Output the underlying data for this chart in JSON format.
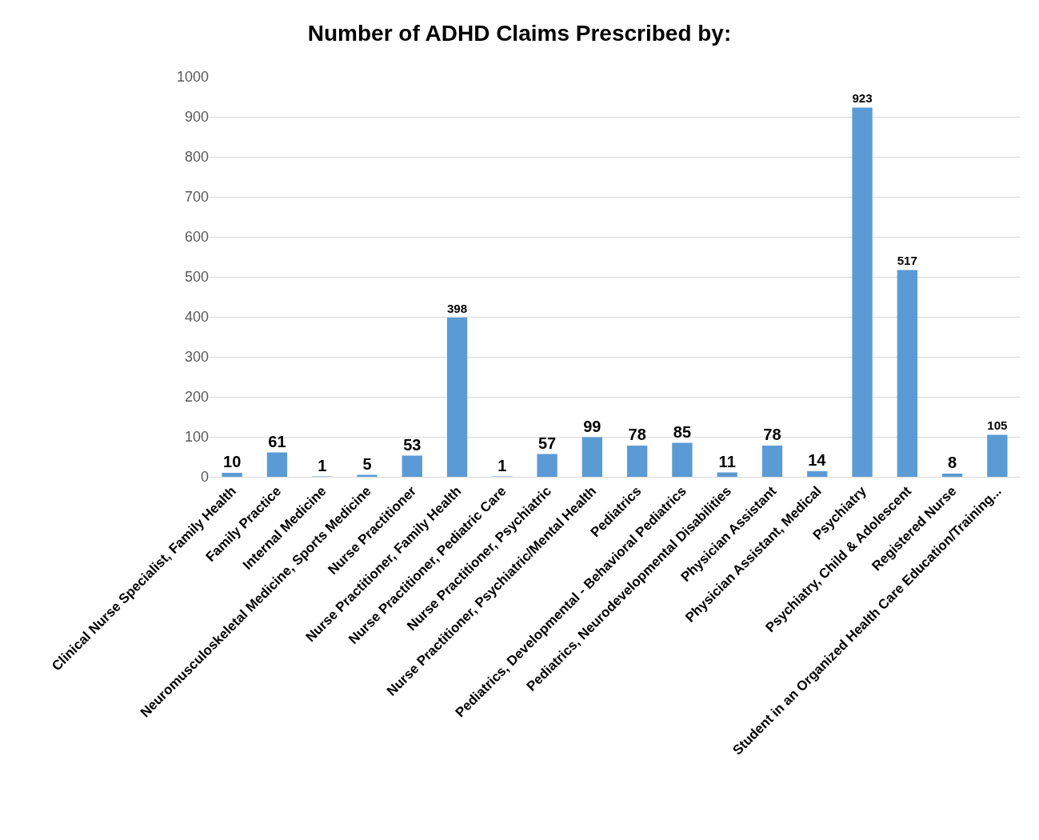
{
  "chart_data": {
    "type": "bar",
    "title": "Number of ADHD Claims Prescribed by:",
    "categories": [
      "Clinical Nurse Specialist, Family Health",
      "Family Practice",
      "Internal Medicine",
      "Neuromusculoskeletal Medicine, Sports Medicine",
      "Nurse Practitioner",
      "Nurse Practitioner, Family Health",
      "Nurse Practitioner, Pediatric Care",
      "Nurse Practitioner, Psychiatric",
      "Nurse Practitioner, Psychiatric/Mental Health",
      "Pediatrics",
      "Pediatrics, Developmental - Behavioral Pediatrics",
      "Pediatrics, Neurodevelopmental Disabilities",
      "Physician Assistant",
      "Physician Assistant, Medical",
      "Psychiatry",
      "Psychiatry, Child & Adolescent",
      "Registered Nurse",
      "Student in an Organized Health Care Education/Training..."
    ],
    "values": [
      10,
      61,
      1,
      5,
      53,
      398,
      1,
      57,
      99,
      78,
      85,
      11,
      78,
      14,
      923,
      517,
      8,
      105
    ],
    "color": "#5b9bd5",
    "ylim": [
      0,
      1000
    ],
    "yticks": [
      0,
      100,
      200,
      300,
      400,
      500,
      600,
      700,
      800,
      900,
      1000
    ],
    "grid": "y",
    "legend": false,
    "data_labels": true
  }
}
